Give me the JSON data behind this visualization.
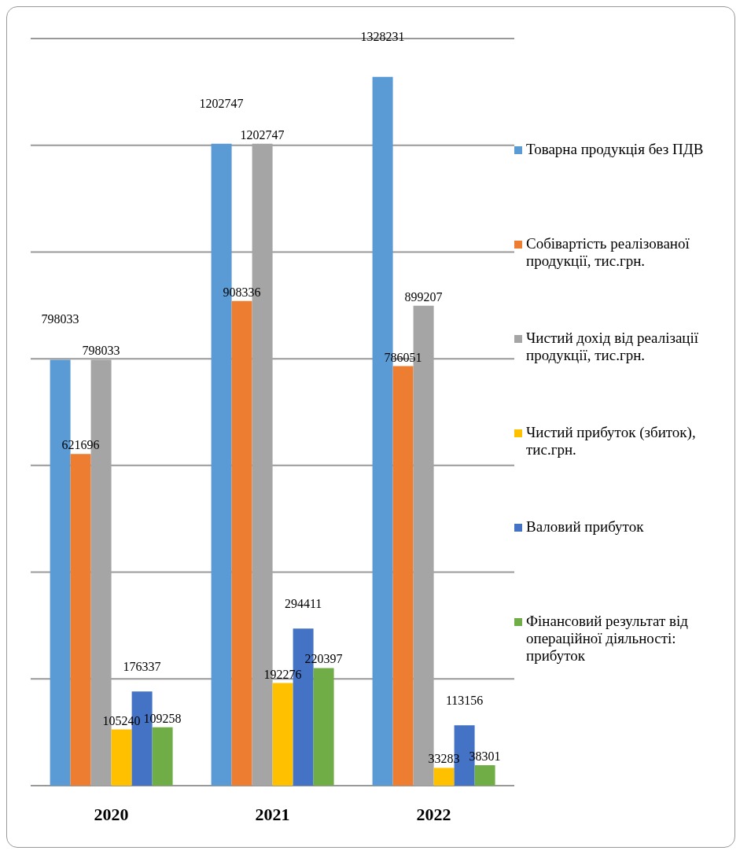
{
  "chart_data": {
    "type": "bar",
    "categories": [
      "2020",
      "2021",
      "2022"
    ],
    "series": [
      {
        "name": "Товарна продукція без ПДВ",
        "color": "#5b9bd5",
        "values": [
          798033,
          1202747,
          1328231
        ]
      },
      {
        "name": "Собівартість реалізованої продукції, тис.грн.",
        "color": "#ed7d31",
        "values": [
          621696,
          908336,
          786051
        ]
      },
      {
        "name": "Чистий дохід  від реалізації продукції, тис.грн.",
        "color": "#a5a5a5",
        "values": [
          798033,
          1202747,
          899207
        ]
      },
      {
        "name": "Чистий прибуток (збиток), тис.грн.",
        "color": "#ffc000",
        "values": [
          105240,
          192276,
          33283
        ]
      },
      {
        "name": "Валовий прибуток",
        "color": "#4472c4",
        "values": [
          176337,
          294411,
          113156
        ]
      },
      {
        "name": "Фінансовий результат від операційної діяльності: прибуток",
        "color": "#70ad47",
        "values": [
          109258,
          220397,
          38301
        ]
      }
    ],
    "tick_labels": "x",
    "grid": "y",
    "legend": "right",
    "data_labels": true
  }
}
